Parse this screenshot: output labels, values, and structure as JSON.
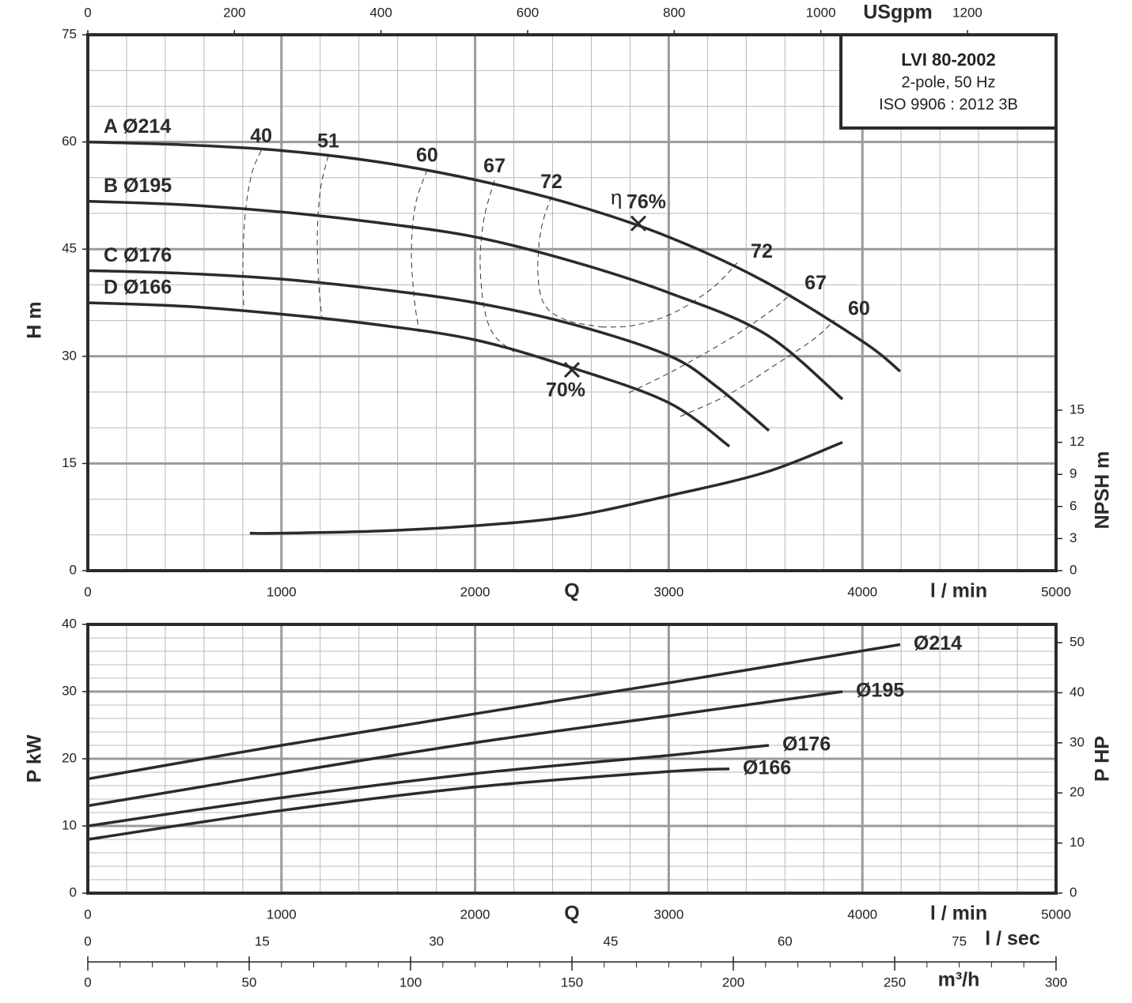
{
  "chart_data": [
    {
      "type": "line",
      "xlabel": "l / min",
      "qlabel": "Q",
      "ylabel": "H m",
      "xlim": [
        0,
        5000
      ],
      "xticks": [
        0,
        1000,
        2000,
        3000,
        4000,
        5000
      ],
      "ylim": [
        0,
        75
      ],
      "yticks": [
        0,
        15,
        30,
        45,
        60,
        75
      ],
      "x2label": "USgpm",
      "x2lim": [
        0,
        1320.9
      ],
      "x2ticks": [
        0,
        200,
        400,
        600,
        800,
        1000,
        1200
      ],
      "y2label": "NPSH m",
      "y2lim": [
        0,
        50.1
      ],
      "y2ticks": [
        0,
        3,
        6,
        9,
        12,
        15
      ],
      "grid": true,
      "minor_step_x": 200,
      "minor_step_y": 5,
      "color": "#2b2b2b",
      "info": [
        "LVI 80-2002",
        "2-pole, 50 Hz",
        "ISO 9906 : 2012 3B"
      ],
      "series": [
        {
          "name": "A Ø214",
          "x": [
            0,
            500,
            1000,
            1500,
            2000,
            2500,
            3000,
            3500,
            4000,
            4195
          ],
          "values": [
            60,
            59.6,
            58.8,
            57.2,
            54.7,
            51.3,
            46.7,
            40.4,
            32.1,
            27.9
          ]
        },
        {
          "name": "B Ø195",
          "x": [
            0,
            500,
            1000,
            1500,
            2000,
            2500,
            3000,
            3500,
            3897
          ],
          "values": [
            51.7,
            51.2,
            50.2,
            48.7,
            46.7,
            43.3,
            38.9,
            33.1,
            24
          ]
        },
        {
          "name": "C Ø176",
          "x": [
            0,
            500,
            1000,
            1500,
            2000,
            2500,
            3000,
            3250,
            3517
          ],
          "values": [
            42,
            41.6,
            40.8,
            39.4,
            37.5,
            34.5,
            30.1,
            25.7,
            19.6
          ]
        },
        {
          "name": "D Ø166",
          "x": [
            0,
            500,
            1000,
            1500,
            2000,
            2500,
            3000,
            3313
          ],
          "values": [
            37.5,
            37,
            35.9,
            34.4,
            32.3,
            28.4,
            23.5,
            17.4
          ]
        },
        {
          "axis": "y2",
          "x": [
            837,
            1000,
            1500,
            2000,
            2500,
            3000,
            3500,
            3897
          ],
          "values": [
            3.5,
            3.5,
            3.7,
            4.2,
            5.1,
            7,
            9.2,
            12
          ]
        }
      ],
      "efficiency_symbol": "η",
      "efficiency_contours": [
        {
          "value": 40,
          "x": [
            895,
            846,
            813,
            801,
            805
          ],
          "values": [
            58.8,
            55.5,
            50,
            43.4,
            36.8
          ]
        },
        {
          "value": 51,
          "x": [
            1242,
            1201,
            1185,
            1193,
            1209
          ],
          "values": [
            58.1,
            53.3,
            46.7,
            40,
            35.4
          ]
        },
        {
          "value": 60,
          "x": [
            1752,
            1691,
            1671,
            1687,
            1712
          ],
          "values": [
            56.1,
            51.1,
            44.5,
            37.8,
            33.4
          ]
        },
        {
          "value": 67,
          "x": [
            2100,
            2047,
            2026,
            2047,
            2100,
            2202
          ],
          "values": [
            54.6,
            49.4,
            43.4,
            36.7,
            32.9,
            30.6
          ]
        },
        {
          "value": 72,
          "x": [
            2394,
            2341,
            2324,
            2357,
            2467,
            2651
          ],
          "values": [
            52.4,
            47.8,
            41.7,
            37.3,
            35.1,
            34.1
          ]
        },
        {
          "value": 72,
          "x": [
            2651,
            2815,
            3019,
            3223,
            3354
          ],
          "values": [
            34.1,
            34.3,
            36,
            39.5,
            43.1
          ]
        },
        {
          "value": 67,
          "x": [
            2794,
            3019,
            3305,
            3509,
            3632
          ],
          "values": [
            24.9,
            27.9,
            32.3,
            36,
            38.7
          ]
        },
        {
          "value": 60,
          "x": [
            3060,
            3305,
            3550,
            3754,
            3856
          ],
          "values": [
            21.6,
            24.6,
            28.8,
            32.5,
            35.1
          ]
        }
      ],
      "bep": [
        {
          "x": 2843,
          "y": 48.6,
          "efficiency": 76,
          "label": "76%"
        },
        {
          "x": 2500,
          "y": 28.1,
          "efficiency": 70,
          "label": "70%"
        }
      ]
    },
    {
      "type": "line",
      "xlabel": "l / min",
      "qlabel": "Q",
      "ylabel": "P kW",
      "xlim": [
        0,
        5000
      ],
      "xticks": [
        0,
        1000,
        2000,
        3000,
        4000,
        5000
      ],
      "ylim": [
        0,
        40
      ],
      "yticks": [
        0,
        10,
        20,
        30,
        40
      ],
      "y2label": "P HP",
      "y2lim": [
        0,
        53.64
      ],
      "y2ticks": [
        0,
        10,
        20,
        30,
        40,
        50
      ],
      "grid": true,
      "minor_step_x": 200,
      "minor_step_y": 2,
      "color": "#2b2b2b",
      "series": [
        {
          "name": "Ø214",
          "x": [
            0,
            1000,
            2000,
            3000,
            4195
          ],
          "values": [
            17,
            22,
            26.7,
            31.3,
            37
          ]
        },
        {
          "name": "Ø195",
          "x": [
            0,
            1000,
            2000,
            3000,
            3897
          ],
          "values": [
            13,
            17.8,
            22.4,
            26.4,
            30
          ]
        },
        {
          "name": "Ø176",
          "x": [
            0,
            1000,
            2000,
            3000,
            3517
          ],
          "values": [
            10,
            14.2,
            17.8,
            20.5,
            22
          ]
        },
        {
          "name": "Ø166",
          "x": [
            0,
            1000,
            2000,
            3000,
            3313
          ],
          "values": [
            8,
            12.3,
            15.8,
            18.1,
            18.5
          ]
        }
      ],
      "extra_axes": [
        {
          "label": "l / sec",
          "lim": [
            0,
            83.33
          ],
          "ticks": [
            0,
            15,
            30,
            45,
            60,
            75
          ]
        },
        {
          "label": "m³/h",
          "lim": [
            0,
            300
          ],
          "ticks": [
            0,
            50,
            100,
            150,
            200,
            250,
            300
          ],
          "minor_step": 10
        }
      ]
    }
  ]
}
